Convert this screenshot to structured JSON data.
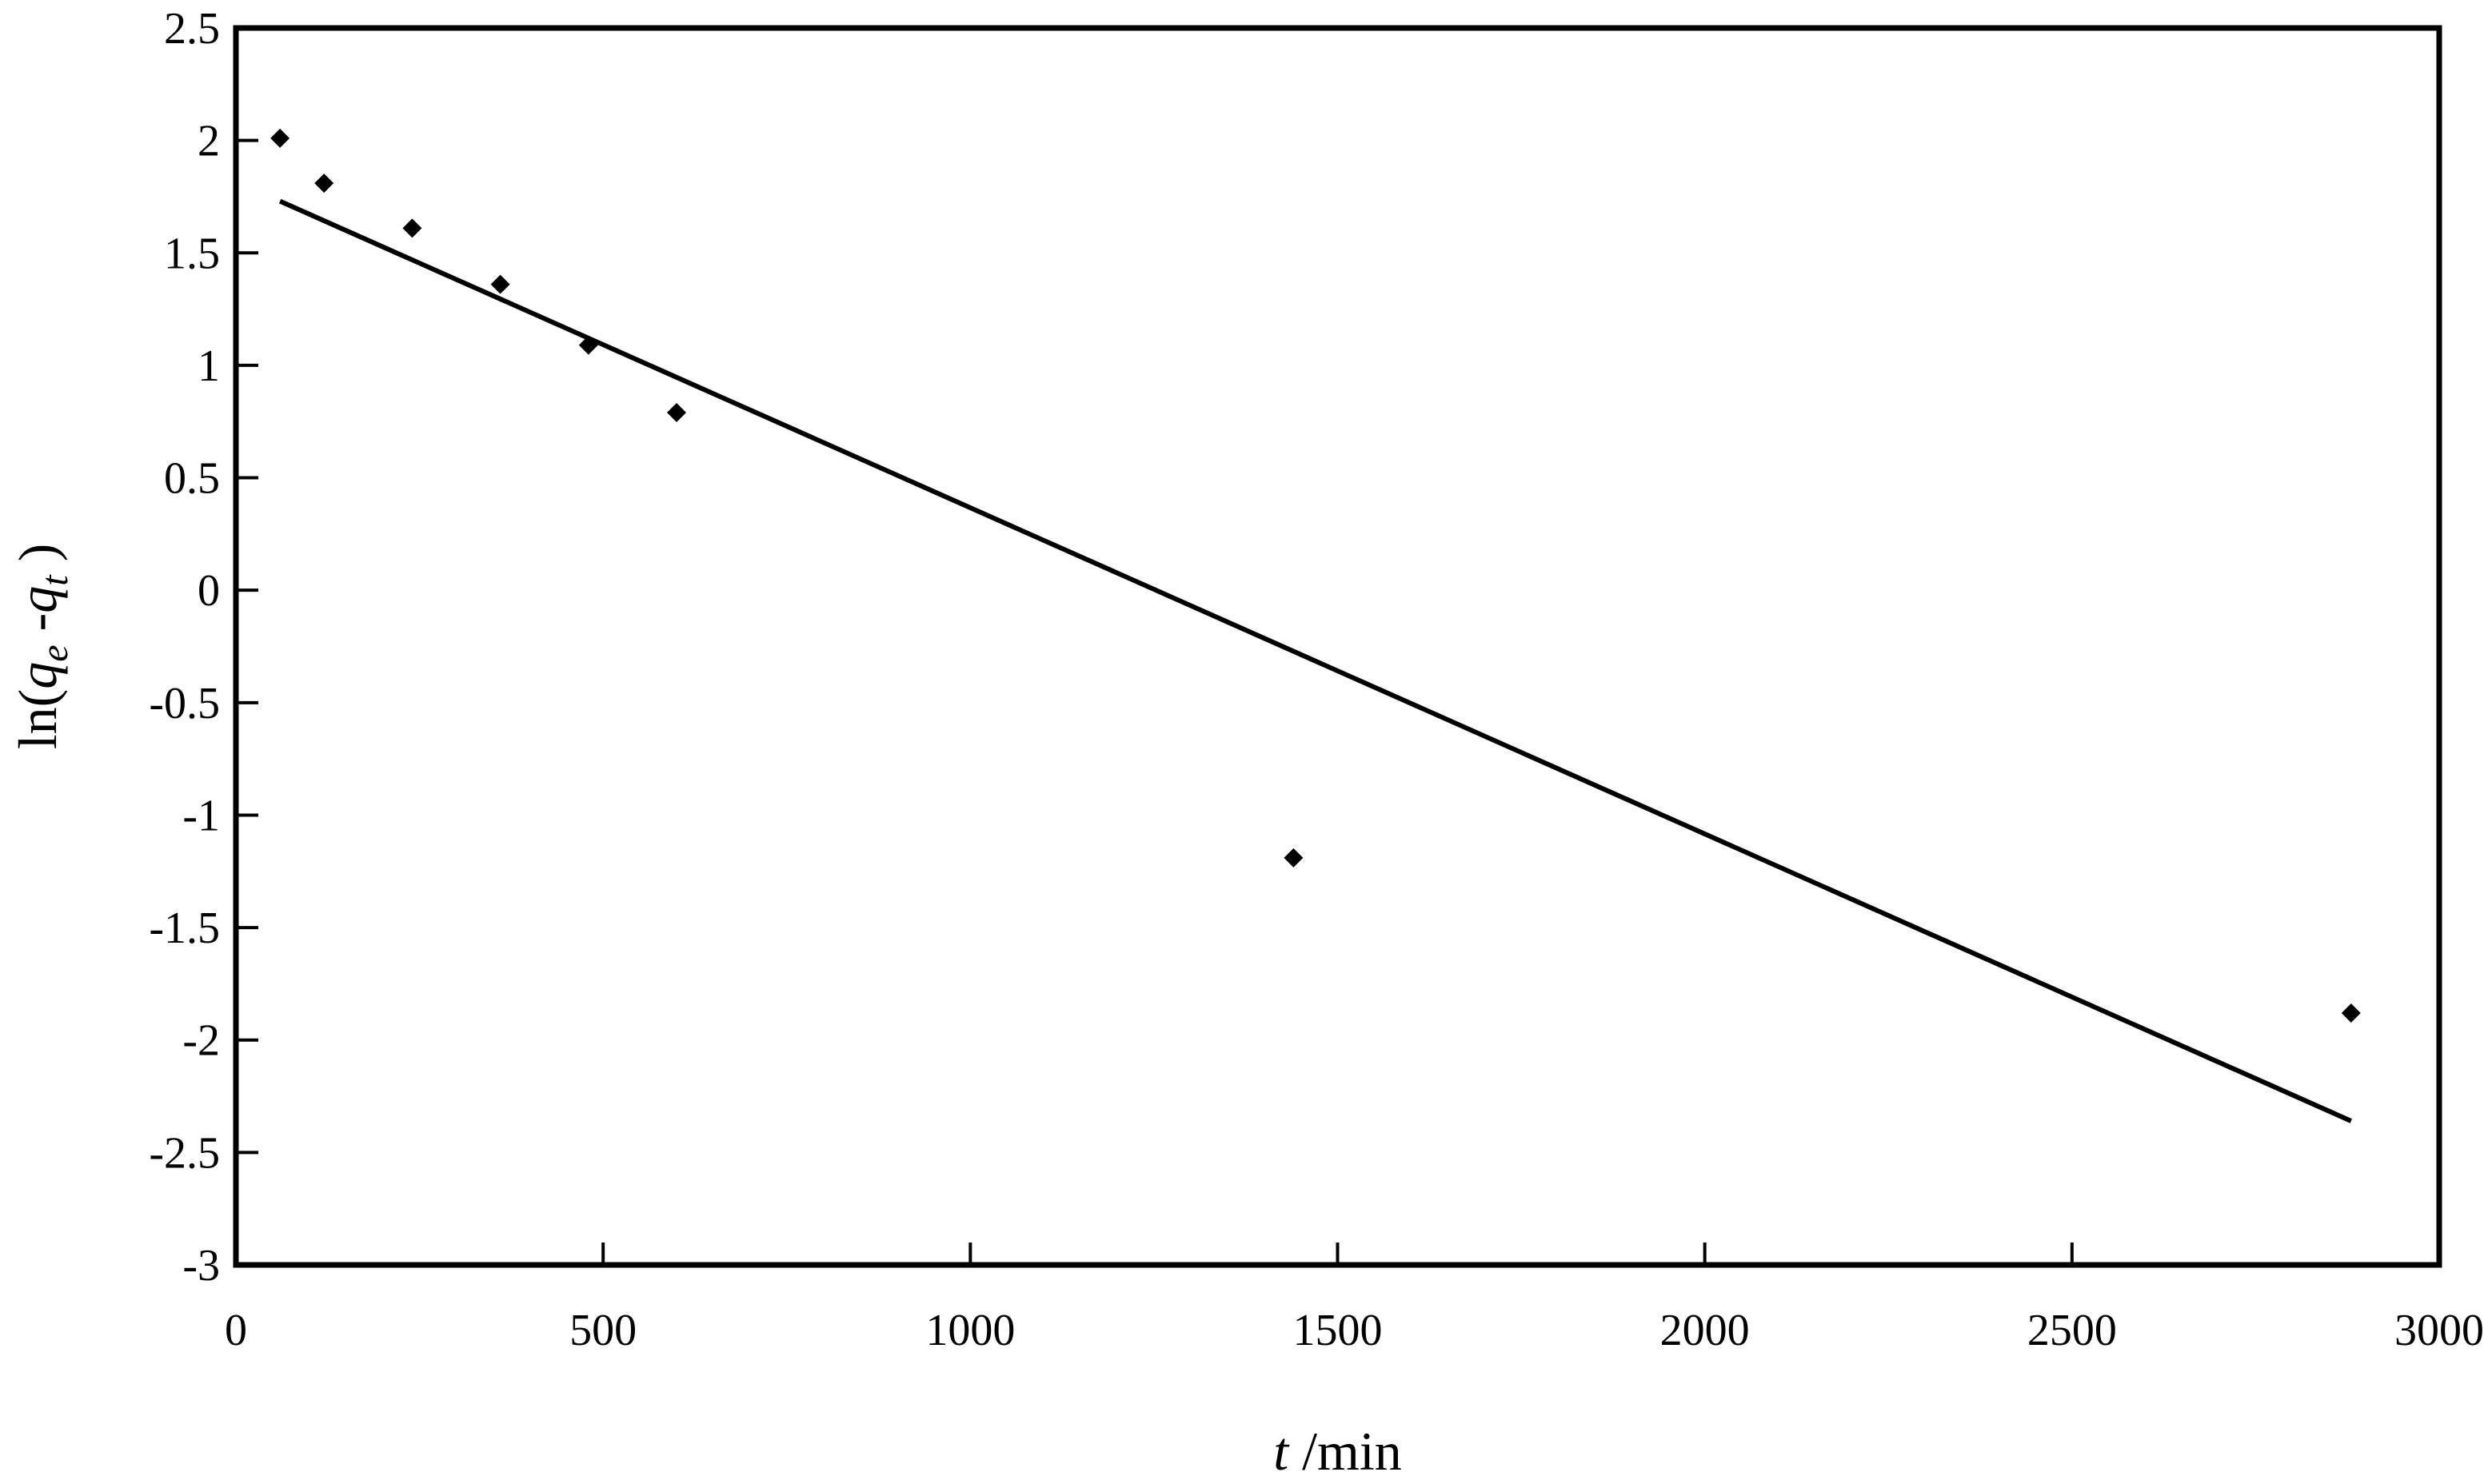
{
  "chart_data": {
    "type": "scatter",
    "title": "",
    "xlabel": {
      "var": "t",
      "unit": " /min"
    },
    "ylabel": {
      "prefix": "ln(",
      "q1": "q",
      "sub1": "e",
      "minus": " -",
      "q2": "q",
      "sub2": "t",
      "suffix": " )"
    },
    "xlim": [
      0,
      3000
    ],
    "ylim": [
      -3,
      2.5
    ],
    "xticks": [
      0,
      500,
      1000,
      1500,
      2000,
      2500,
      3000
    ],
    "xtick_labels": [
      "0",
      "500",
      "1000",
      "1500",
      "2000",
      "2500",
      "3000"
    ],
    "yticks": [
      2.5,
      2,
      1.5,
      1,
      0.5,
      0,
      -0.5,
      -1,
      -1.5,
      -2,
      -2.5,
      -3
    ],
    "ytick_labels": [
      "2.5",
      "2",
      "1.5",
      "1",
      "0.5",
      "0",
      "-0.5",
      "-1",
      "-1.5",
      "-2",
      "-2.5",
      "-3"
    ],
    "grid": false,
    "legend": "none",
    "series": [
      {
        "kind": "points",
        "marker": "diamond",
        "color": "#000000",
        "points": [
          {
            "x": 60,
            "y": 2.01
          },
          {
            "x": 120,
            "y": 1.81
          },
          {
            "x": 240,
            "y": 1.61
          },
          {
            "x": 360,
            "y": 1.36
          },
          {
            "x": 480,
            "y": 1.09
          },
          {
            "x": 600,
            "y": 0.79
          },
          {
            "x": 1440,
            "y": -1.19
          },
          {
            "x": 2880,
            "y": -1.88
          }
        ]
      },
      {
        "kind": "fit-line",
        "color": "#000000",
        "points": [
          {
            "x": 60,
            "y": 1.73
          },
          {
            "x": 2880,
            "y": -2.36
          }
        ]
      }
    ]
  }
}
